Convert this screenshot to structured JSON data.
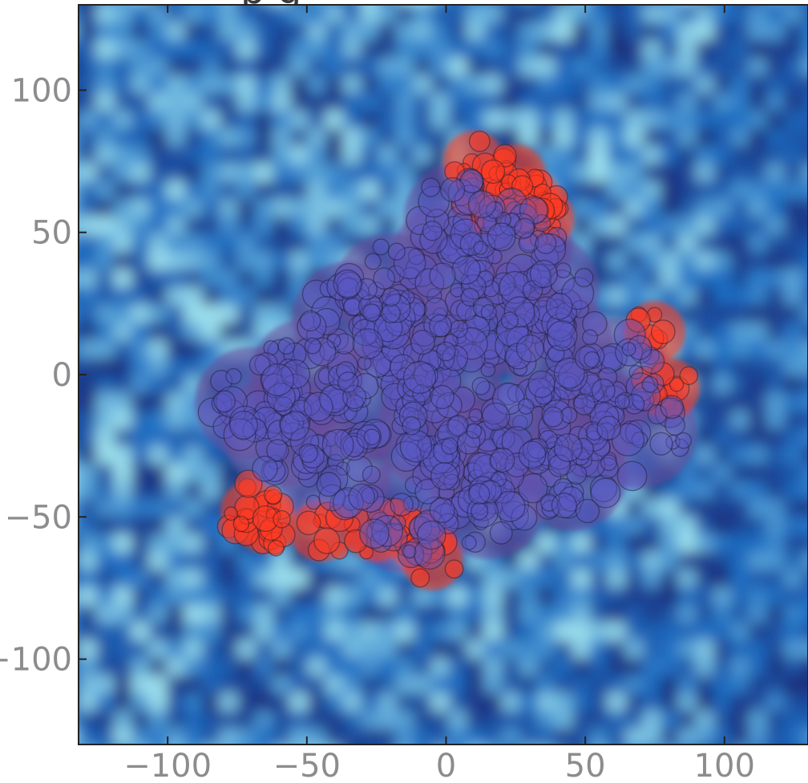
{
  "chart_data": {
    "type": "scatter",
    "title": "",
    "xlabel": "",
    "ylabel": "",
    "xlim": [
      -132,
      130
    ],
    "ylim": [
      -130,
      130
    ],
    "x_ticks": [
      -100,
      -50,
      0,
      50,
      100
    ],
    "y_ticks": [
      100,
      50,
      0,
      -50,
      -100
    ],
    "x_tick_labels": [
      "−100",
      "−50",
      "0",
      "50",
      "100"
    ],
    "y_tick_labels": [
      "100",
      "50",
      "0",
      "−50",
      "−100"
    ],
    "grid": false,
    "legend": "none",
    "background": "heatmap",
    "colors": {
      "background_low": "#1b2a78",
      "background_mid": "#1f6fc4",
      "background_high": "#9fe3ef",
      "tumor_core": "#5b57b8",
      "tumor_edge": "#ff3a22",
      "tick_text": "#8c8c8c"
    },
    "series": [
      {
        "color": "#5a58c4",
        "points": [
          [
            0,
            0
          ],
          [
            -30,
            -10
          ],
          [
            20,
            20
          ],
          [
            10,
            -30
          ],
          [
            -50,
            0
          ],
          [
            40,
            10
          ],
          [
            -20,
            30
          ],
          [
            30,
            -20
          ],
          [
            -60,
            -20
          ],
          [
            60,
            0
          ],
          [
            0,
            40
          ],
          [
            15,
            -45
          ],
          [
            -40,
            -35
          ],
          [
            50,
            -15
          ],
          [
            -10,
            15
          ],
          [
            5,
            55
          ],
          [
            25,
            45
          ],
          [
            -70,
            -10
          ],
          [
            70,
            -20
          ],
          [
            -15,
            -50
          ],
          [
            35,
            30
          ],
          [
            -35,
            20
          ],
          [
            45,
            -35
          ],
          [
            -5,
            -20
          ]
        ]
      },
      {
        "color": "#ff3a22",
        "points": [
          [
            10,
            75
          ],
          [
            25,
            70
          ],
          [
            30,
            62
          ],
          [
            15,
            62
          ],
          [
            -65,
            -52
          ],
          [
            -45,
            -55
          ],
          [
            -25,
            -55
          ],
          [
            -10,
            -58
          ],
          [
            75,
            15
          ],
          [
            80,
            -5
          ],
          [
            -70,
            -48
          ],
          [
            -5,
            -65
          ],
          [
            35,
            55
          ]
        ]
      }
    ]
  }
}
